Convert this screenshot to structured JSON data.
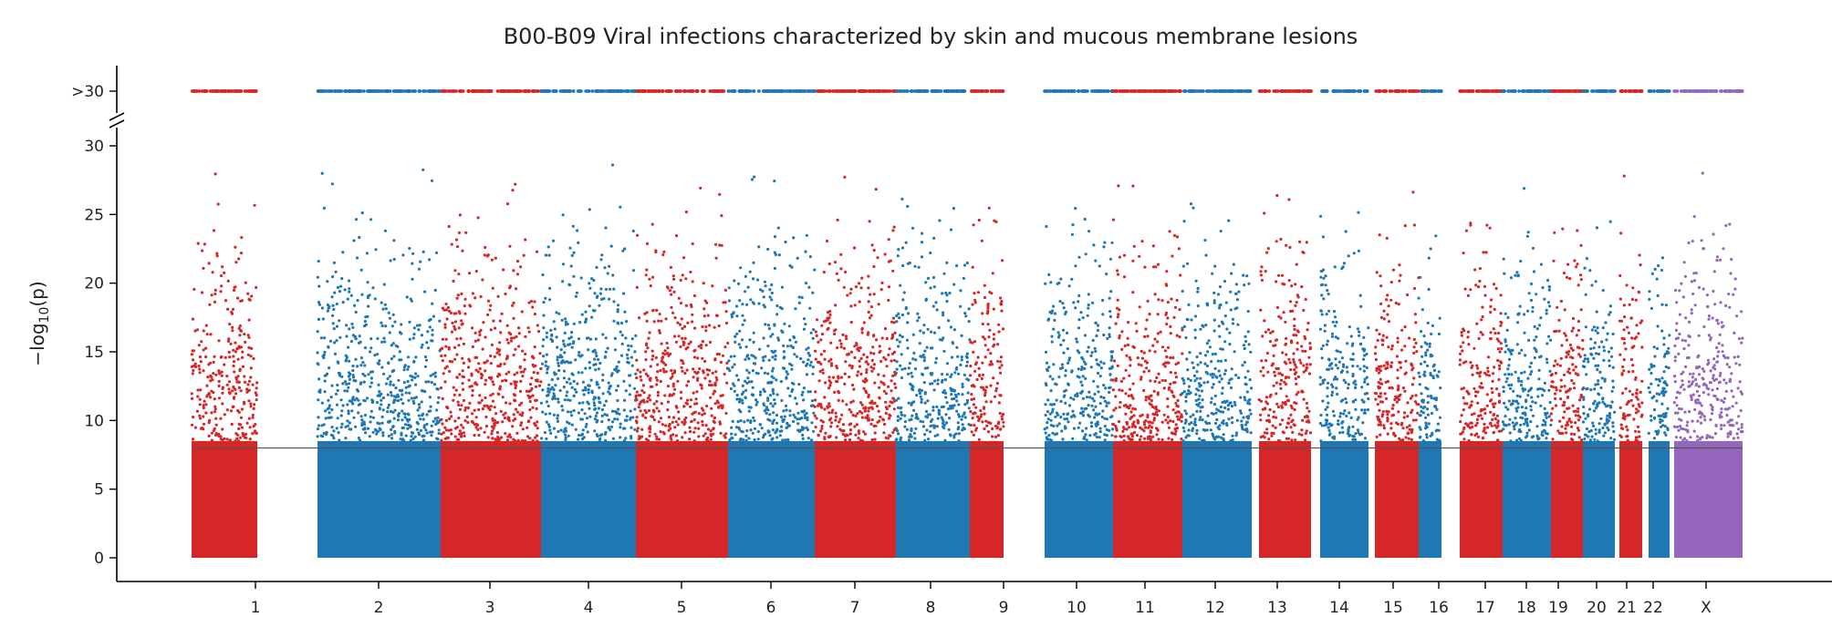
{
  "chart_data": {
    "type": "scatter",
    "title": "B00-B09 Viral infections characterized by skin and mucous membrane lesions",
    "xlabel": "",
    "ylabel": "−log10(p)",
    "ylabel_main": "−log",
    "ylabel_sub": "10",
    "ylabel_end": "(p)",
    "ylim": [
      0,
      30
    ],
    "yticks": [
      "0",
      "5",
      "10",
      "15",
      "20",
      "25",
      "30"
    ],
    "overflow_label": ">30",
    "threshold": 8.0,
    "grid": false,
    "colors": {
      "red": "#d62728",
      "blue": "#1f77b4",
      "purple": "#9467bd",
      "threshold": "#555555"
    },
    "chromosomes": [
      {
        "label": "1",
        "color": "red",
        "peak": 29.8
      },
      {
        "label": "2",
        "color": "blue",
        "peak": 29.8
      },
      {
        "label": "3",
        "color": "red",
        "peak": 29.8
      },
      {
        "label": "4",
        "color": "blue",
        "peak": 29.6
      },
      {
        "label": "5",
        "color": "red",
        "peak": 29.6
      },
      {
        "label": "6",
        "color": "blue",
        "peak": 29.8
      },
      {
        "label": "7",
        "color": "red",
        "peak": 29.8
      },
      {
        "label": "8",
        "color": "blue",
        "peak": 29.5
      },
      {
        "label": "9",
        "color": "red",
        "peak": 29.8
      },
      {
        "label": "10",
        "color": "blue",
        "peak": 29.8
      },
      {
        "label": "11",
        "color": "red",
        "peak": 29.5
      },
      {
        "label": "12",
        "color": "blue",
        "peak": 29.5
      },
      {
        "label": "13",
        "color": "red",
        "peak": 29.5
      },
      {
        "label": "14",
        "color": "blue",
        "peak": 29.5
      },
      {
        "label": "15",
        "color": "red",
        "peak": 29.0
      },
      {
        "label": "16",
        "color": "blue",
        "peak": 28.8
      },
      {
        "label": "17",
        "color": "red",
        "peak": 29.5
      },
      {
        "label": "18",
        "color": "blue",
        "peak": 29.0
      },
      {
        "label": "19",
        "color": "red",
        "peak": 29.3
      },
      {
        "label": "20",
        "color": "blue",
        "peak": 29.0
      },
      {
        "label": "21",
        "color": "red",
        "peak": 29.8
      },
      {
        "label": "22",
        "color": "blue",
        "peak": 28.5
      },
      {
        "label": "X",
        "color": "purple",
        "peak": 29.9
      }
    ]
  }
}
